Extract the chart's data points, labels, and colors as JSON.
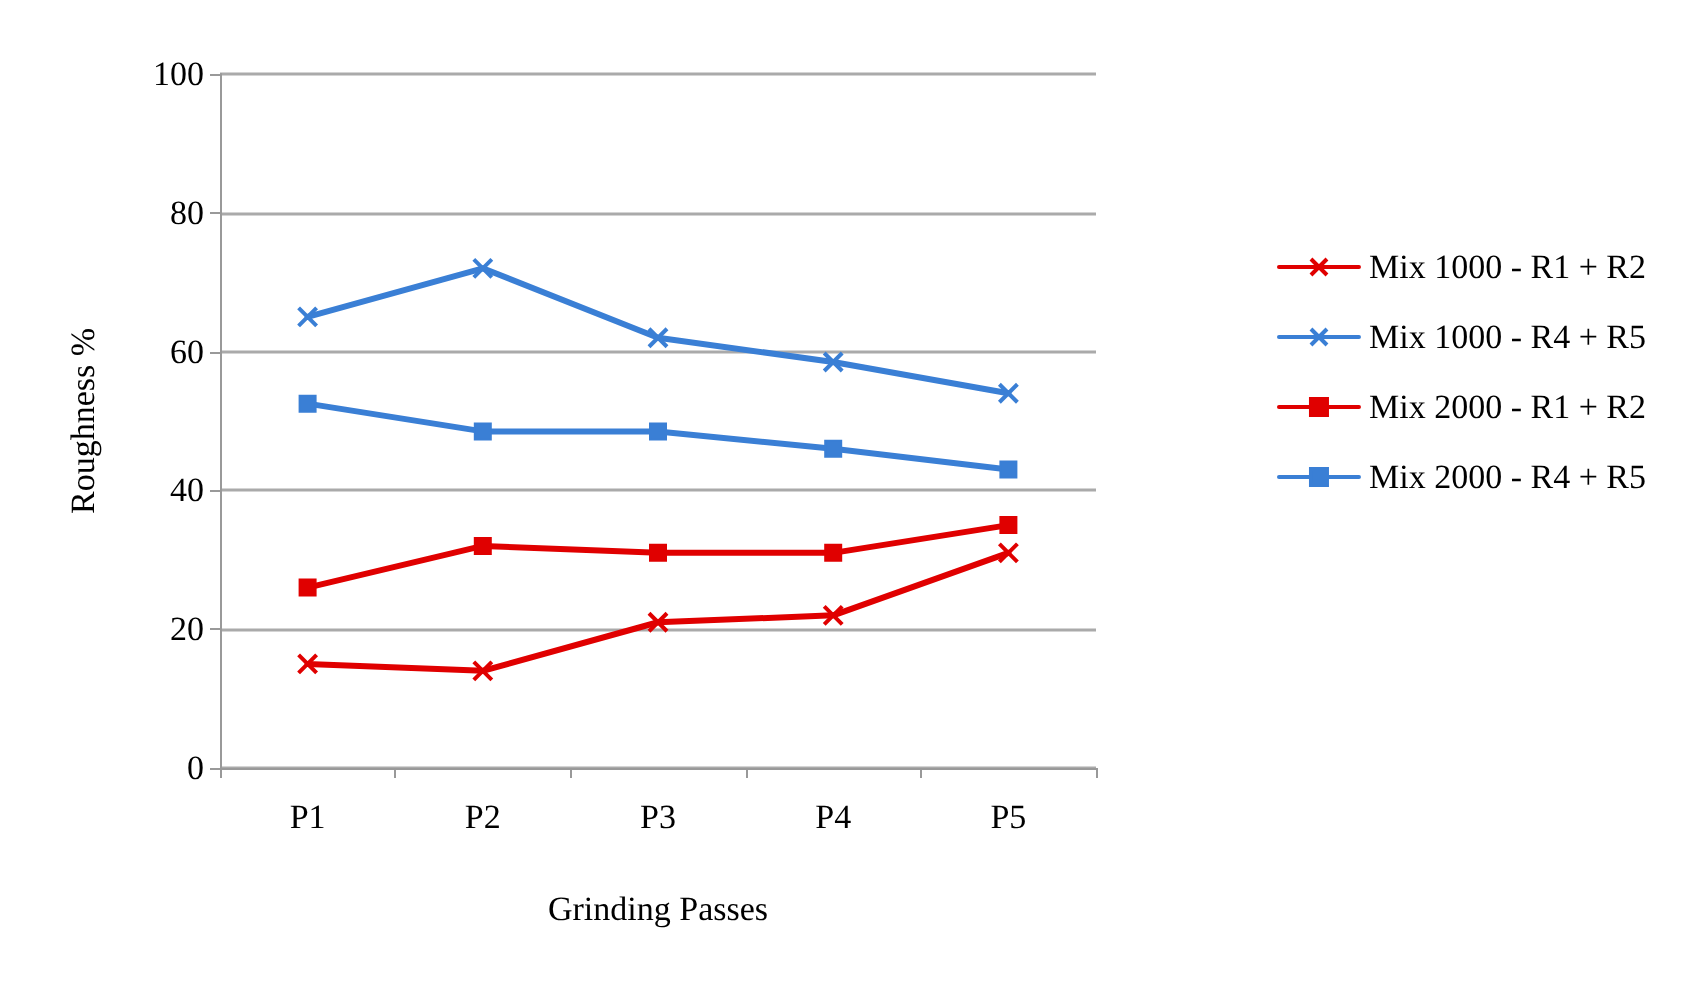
{
  "chart_data": {
    "type": "line",
    "xlabel": "Grinding Passes",
    "ylabel": "Roughness %",
    "categories": [
      "P1",
      "P2",
      "P3",
      "P4",
      "P5"
    ],
    "series": [
      {
        "name": "Mix 1000 - R1 + R2",
        "color": "#e00000",
        "marker": "cross",
        "values": [
          15,
          14,
          21,
          22,
          31
        ]
      },
      {
        "name": "Mix 1000 - R4 + R5",
        "color": "#3a7fd5",
        "marker": "cross",
        "values": [
          65,
          72,
          62,
          58.5,
          54
        ]
      },
      {
        "name": "Mix 2000 - R1 + R2",
        "color": "#e00000",
        "marker": "square",
        "values": [
          26,
          32,
          31,
          31,
          35
        ]
      },
      {
        "name": "Mix 2000 - R4 + R5",
        "color": "#3a7fd5",
        "marker": "square",
        "values": [
          52.5,
          48.5,
          48.5,
          46,
          43
        ]
      }
    ],
    "ylim": [
      0,
      100
    ],
    "yticks": [
      0,
      20,
      40,
      60,
      80,
      100
    ],
    "grid": "y",
    "legend": "right"
  }
}
